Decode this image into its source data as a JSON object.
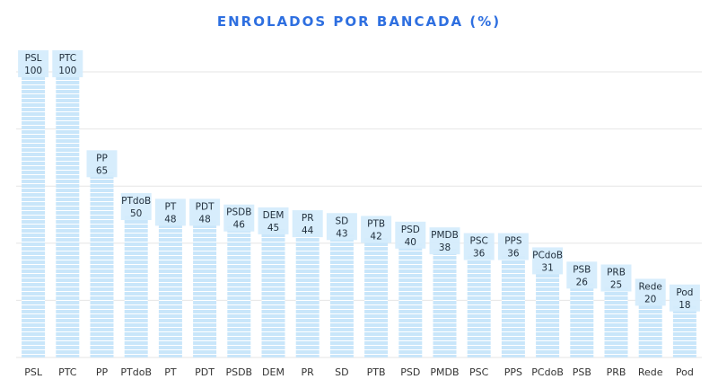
{
  "chart_data": {
    "type": "bar",
    "title": "ENROLADOS POR BANCADA (%)",
    "xlabel": "",
    "ylabel": "",
    "ylim": [
      0,
      100
    ],
    "grid": true,
    "categories": [
      "PSL",
      "PTC",
      "PP",
      "PTdoB",
      "PT",
      "PDT",
      "PSDB",
      "DEM",
      "PR",
      "SD",
      "PTB",
      "PSD",
      "PMDB",
      "PSC",
      "PPS",
      "PCdoB",
      "PSB",
      "PRB",
      "Rede",
      "Pod"
    ],
    "values": [
      100,
      100,
      65,
      50,
      48,
      48,
      46,
      45,
      44,
      43,
      42,
      40,
      38,
      36,
      36,
      31,
      26,
      25,
      20,
      18
    ],
    "colors": {
      "bar": "#c9e6fa",
      "bar_stripe": "#ffffff",
      "label_box": "#d5ecfc",
      "title": "#2e6fe0",
      "grid": "#e6e6e6"
    }
  }
}
